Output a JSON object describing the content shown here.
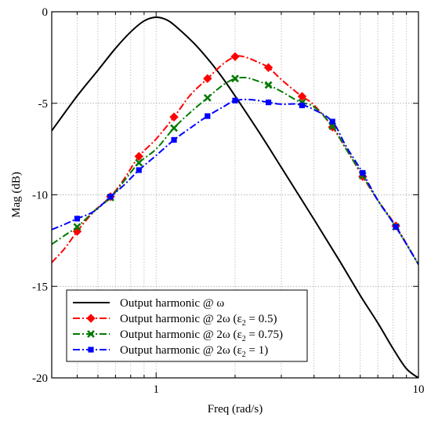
{
  "chart_data": {
    "type": "line",
    "xlabel": "Freq (rad/s)",
    "ylabel": "Mag (dB)",
    "xscale": "log",
    "xlim": [
      0.4,
      10
    ],
    "ylim": [
      -20,
      0
    ],
    "grid": true,
    "legend_position": "bottom-left",
    "x_ticks": [
      {
        "value": 1,
        "label": "1"
      },
      {
        "value": 10,
        "label": "10"
      }
    ],
    "y_ticks": [
      {
        "value": 0,
        "label": "0"
      },
      {
        "value": -5,
        "label": "-5"
      },
      {
        "value": -10,
        "label": "-10"
      },
      {
        "value": -15,
        "label": "-15"
      },
      {
        "value": -20,
        "label": "-20"
      }
    ],
    "series": [
      {
        "name": "Output harmonic @ ω",
        "color": "#000000",
        "style": "solid",
        "marker": "none",
        "x": [
          0.4,
          0.5,
          0.6,
          0.7,
          0.8,
          0.9,
          1.0,
          1.1,
          1.2,
          1.4,
          1.6,
          1.8,
          2.0,
          2.5,
          3.0,
          4.0,
          5.0,
          6.0,
          7.0,
          8.0,
          9.0,
          10.0
        ],
        "y": [
          -6.5,
          -4.6,
          -3.2,
          -2.0,
          -1.1,
          -0.5,
          -0.3,
          -0.45,
          -0.85,
          -1.75,
          -2.7,
          -3.65,
          -4.6,
          -6.7,
          -8.5,
          -11.35,
          -13.6,
          -15.5,
          -17.0,
          -18.4,
          -19.5,
          -20.0
        ]
      },
      {
        "name": "Output harmonic @ 2ω (ε",
        "name_sub": "2",
        "name_tail": " = 0.5)",
        "color": "#ff0000",
        "style": "dashdot",
        "marker": "diamond",
        "x": [
          0.4,
          0.45,
          0.5,
          0.58,
          0.67,
          0.75,
          0.86,
          1.0,
          1.17,
          1.35,
          1.57,
          1.8,
          2.0,
          2.15,
          2.4,
          2.68,
          3.0,
          3.5,
          4.0,
          4.7,
          5.3,
          6.13,
          7.0,
          8.2,
          10.0
        ],
        "y": [
          -13.7,
          -12.9,
          -12.0,
          -10.9,
          -10.1,
          -9.2,
          -7.9,
          -6.95,
          -5.75,
          -4.55,
          -3.65,
          -2.85,
          -2.45,
          -2.45,
          -2.7,
          -3.05,
          -3.7,
          -4.5,
          -5.1,
          -6.3,
          -7.5,
          -9.0,
          -10.3,
          -11.7,
          -13.8
        ]
      },
      {
        "name": "Output harmonic @ 2ω (ε",
        "name_sub": "2",
        "name_tail": " = 0.75)",
        "color": "#007a00",
        "style": "dashdot",
        "marker": "x",
        "x": [
          0.4,
          0.45,
          0.5,
          0.58,
          0.67,
          0.75,
          0.86,
          1.0,
          1.17,
          1.35,
          1.57,
          1.8,
          2.0,
          2.2,
          2.4,
          2.68,
          3.0,
          3.5,
          4.0,
          4.7,
          5.3,
          6.13,
          7.0,
          8.2,
          10.0
        ],
        "y": [
          -12.7,
          -12.2,
          -11.75,
          -10.9,
          -10.15,
          -9.3,
          -8.25,
          -7.5,
          -6.35,
          -5.5,
          -4.7,
          -4.0,
          -3.65,
          -3.6,
          -3.75,
          -4.0,
          -4.35,
          -4.9,
          -5.2,
          -6.25,
          -7.5,
          -8.95,
          -10.3,
          -11.75,
          -13.8
        ]
      },
      {
        "name": "Output harmonic @ 2ω (ε",
        "name_sub": "2",
        "name_tail": " = 1)",
        "color": "#0000ff",
        "style": "dashdot",
        "marker": "square",
        "x": [
          0.4,
          0.45,
          0.5,
          0.58,
          0.67,
          0.75,
          0.86,
          1.0,
          1.17,
          1.35,
          1.57,
          1.8,
          2.0,
          2.3,
          2.68,
          3.0,
          3.5,
          4.0,
          4.7,
          5.3,
          6.13,
          7.0,
          8.2,
          10.0
        ],
        "y": [
          -11.9,
          -11.6,
          -11.3,
          -10.9,
          -10.1,
          -9.5,
          -8.65,
          -7.85,
          -7.0,
          -6.35,
          -5.7,
          -5.2,
          -4.85,
          -4.8,
          -4.95,
          -5.05,
          -5.05,
          -5.35,
          -6.0,
          -7.35,
          -8.8,
          -10.3,
          -11.75,
          -13.8
        ]
      }
    ]
  }
}
